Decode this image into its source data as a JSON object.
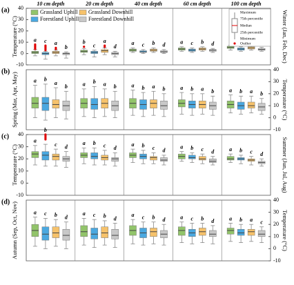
{
  "chart_data": [
    {
      "type": "box",
      "panel": "(a)",
      "categories": [
        "10 cm depth",
        "20 cm depth",
        "40 cm depth",
        "60 cm depth",
        "100 cm depth"
      ],
      "ylabel_left": "Temperature (°C)",
      "ylabel_right": "Winter (Jan, Feb, Dec)",
      "tick_side": "left",
      "ylim": [
        -10,
        40
      ],
      "yticks": [
        -10,
        0,
        10,
        20,
        30,
        40
      ],
      "box_key": {
        "maximum": "Maximum",
        "q3": "75th percentile",
        "median": "Median",
        "q1": "25th percentile",
        "minimum": "Minimum",
        "outlier": "Outlier"
      },
      "series": [
        {
          "name": "Grassland Uphill",
          "color": "#92c46a",
          "min": [
            -2,
            -1,
            1,
            2,
            3
          ],
          "q1": [
            0,
            1,
            2,
            3,
            4.5
          ],
          "median": [
            1,
            2,
            3,
            4,
            5.5
          ],
          "q3": [
            2,
            3,
            4,
            5,
            6.5
          ],
          "max": [
            3.5,
            4.5,
            5,
            6,
            7.5
          ],
          "letters": [
            "a",
            "b",
            "a",
            "a",
            "a"
          ],
          "outliers": [
            [
              4,
              5,
              6,
              7,
              8
            ],
            [
              6
            ],
            [],
            [],
            []
          ]
        },
        {
          "name": "Forestland Uphill",
          "color": "#4aa8e0",
          "min": [
            -5,
            -3,
            0,
            1,
            2
          ],
          "q1": [
            -1,
            0,
            1,
            2,
            3
          ],
          "median": [
            0,
            1,
            1.5,
            3,
            4
          ],
          "q3": [
            1,
            2,
            2.5,
            4,
            5
          ],
          "max": [
            2,
            3,
            3.5,
            5,
            6
          ],
          "letters": [
            "c",
            "c",
            "c",
            "c",
            "c"
          ],
          "outliers": [
            [
              3,
              4,
              5,
              6,
              7
            ],
            [],
            [],
            [],
            []
          ]
        },
        {
          "name": "Grassland Downhill",
          "color": "#f6c26b",
          "min": [
            -2,
            -1,
            1,
            2,
            3
          ],
          "q1": [
            0,
            1,
            2,
            3,
            4
          ],
          "median": [
            1,
            2.5,
            3,
            4,
            5
          ],
          "q3": [
            2,
            3.5,
            4,
            5,
            6
          ],
          "max": [
            3,
            5,
            5,
            6,
            7
          ],
          "letters": [
            "a",
            "a",
            "b",
            "b",
            "b"
          ],
          "outliers": [
            [
              4,
              5
            ],
            [
              6,
              7
            ],
            [],
            [],
            []
          ]
        },
        {
          "name": "Forestland Downhill",
          "color": "#c8c8c8",
          "min": [
            -4,
            -3,
            0,
            1,
            2
          ],
          "q1": [
            -1,
            -1,
            1,
            2,
            3
          ],
          "median": [
            0,
            0,
            1.5,
            3,
            3.5
          ],
          "q3": [
            0.5,
            1,
            2.5,
            3.5,
            4.5
          ],
          "max": [
            1.5,
            2,
            3.5,
            4.5,
            5.5
          ],
          "letters": [
            "b",
            "d",
            "d",
            "d",
            "b"
          ],
          "outliers": [
            [],
            [],
            [],
            [],
            []
          ]
        }
      ]
    },
    {
      "type": "box",
      "panel": "(b)",
      "ylabel_left": "Spring (Mar, Apr, May)",
      "ylabel_right": "Temperature (°C)",
      "tick_side": "right",
      "ylim": [
        -10,
        40
      ],
      "yticks": [
        -10,
        0,
        10,
        20,
        30,
        40
      ],
      "series": [
        {
          "color": "#92c46a",
          "min": [
            0,
            1,
            2,
            3,
            4
          ],
          "q1": [
            8,
            8,
            8,
            9,
            8
          ],
          "median": [
            12,
            12,
            12,
            12,
            11
          ],
          "q3": [
            17,
            16,
            16,
            15,
            14
          ],
          "max": [
            27,
            24,
            23,
            21,
            19
          ],
          "letters": [
            "a",
            "a",
            "a",
            "a",
            "a"
          ],
          "outliers": [
            [],
            [],
            [],
            [],
            []
          ]
        },
        {
          "color": "#4aa8e0",
          "min": [
            -2,
            0,
            1,
            2,
            3
          ],
          "q1": [
            6,
            7,
            7,
            8,
            7
          ],
          "median": [
            12,
            11,
            11,
            11,
            10
          ],
          "q3": [
            17,
            16,
            15,
            14,
            13
          ],
          "max": [
            28,
            26,
            21,
            20,
            18
          ],
          "letters": [
            "b",
            "b",
            "b",
            "b",
            "b"
          ],
          "outliers": [
            [],
            [],
            [],
            [],
            []
          ]
        },
        {
          "color": "#f6c26b",
          "min": [
            0,
            1,
            2,
            3,
            4
          ],
          "q1": [
            8,
            8,
            8,
            8,
            8
          ],
          "median": [
            11,
            12,
            12,
            11,
            10
          ],
          "q3": [
            15,
            16,
            15,
            14,
            13
          ],
          "max": [
            25,
            24,
            22,
            20,
            18
          ],
          "letters": [
            "a",
            "a",
            "a",
            "a",
            "a"
          ],
          "outliers": [
            [],
            [],
            [],
            [],
            []
          ]
        },
        {
          "color": "#c8c8c8",
          "min": [
            -1,
            0,
            1,
            2,
            3
          ],
          "q1": [
            6,
            6,
            7,
            7,
            6
          ],
          "median": [
            10,
            10,
            10,
            10,
            9
          ],
          "q3": [
            14,
            14,
            14,
            13,
            12
          ],
          "max": [
            22,
            22,
            20,
            18,
            16
          ],
          "letters": [
            "b",
            "b",
            "b",
            "b",
            "b"
          ],
          "outliers": [
            [],
            [],
            [],
            [],
            []
          ]
        }
      ]
    },
    {
      "type": "box",
      "panel": "(c)",
      "ylabel_left": "Temperature (°C)",
      "ylabel_right": "Summer (Jun, Jul, Aug)",
      "tick_side": "left",
      "ylim": [
        -10,
        40
      ],
      "yticks": [
        -10,
        0,
        10,
        20,
        30,
        40
      ],
      "series": [
        {
          "color": "#92c46a",
          "min": [
            15,
            16,
            17,
            18,
            17
          ],
          "q1": [
            21,
            21,
            21,
            20,
            19
          ],
          "median": [
            24,
            23,
            23,
            22,
            20
          ],
          "q3": [
            26,
            25,
            25,
            24,
            22
          ],
          "max": [
            31,
            29,
            28,
            26,
            24
          ],
          "letters": [
            "a",
            "a",
            "a",
            "a",
            "a"
          ],
          "outliers": [
            [],
            [],
            [],
            [],
            []
          ]
        },
        {
          "color": "#4aa8e0",
          "min": [
            14,
            15,
            16,
            17,
            16
          ],
          "q1": [
            19,
            20,
            20,
            20,
            19
          ],
          "median": [
            23,
            22,
            22,
            21,
            20
          ],
          "q3": [
            26,
            25,
            24,
            23,
            21
          ],
          "max": [
            32,
            29,
            27,
            25,
            23
          ],
          "letters": [
            "b",
            "b",
            "b",
            "b",
            "b"
          ],
          "outliers": [
            [
              36,
              37,
              38,
              39,
              40
            ],
            [],
            [],
            [],
            []
          ]
        },
        {
          "color": "#f6c26b",
          "min": [
            14,
            15,
            16,
            16,
            15
          ],
          "q1": [
            19,
            19,
            19,
            19,
            18
          ],
          "median": [
            22,
            21,
            21,
            20,
            19
          ],
          "q3": [
            24,
            23,
            22,
            22,
            20
          ],
          "max": [
            28,
            27,
            25,
            24,
            22
          ],
          "letters": [
            "c",
            "c",
            "c",
            "c",
            "c"
          ],
          "outliers": [
            [],
            [],
            [],
            [],
            []
          ]
        },
        {
          "color": "#c8c8c8",
          "min": [
            13,
            14,
            15,
            15,
            14
          ],
          "q1": [
            18,
            18,
            18,
            17,
            16
          ],
          "median": [
            20,
            20,
            19,
            18,
            17
          ],
          "q3": [
            22,
            21,
            21,
            20,
            18
          ],
          "max": [
            26,
            25,
            23,
            22,
            20
          ],
          "letters": [
            "d",
            "d",
            "d",
            "d",
            "d"
          ],
          "outliers": [
            [],
            [],
            [],
            [],
            []
          ]
        }
      ]
    },
    {
      "type": "box",
      "panel": "(d)",
      "ylabel_left": "Autumn (Sep, Oct, Nov)",
      "ylabel_right": "Temperature (°C)",
      "tick_side": "right",
      "ylim": [
        -10,
        40
      ],
      "yticks": [
        -10,
        0,
        10,
        20,
        30,
        40
      ],
      "series": [
        {
          "color": "#92c46a",
          "min": [
            2,
            3,
            4,
            5,
            6
          ],
          "q1": [
            10,
            10,
            11,
            11,
            12
          ],
          "median": [
            15,
            14,
            15,
            15,
            15
          ],
          "q3": [
            20,
            19,
            19,
            18,
            17
          ],
          "max": [
            26,
            25,
            24,
            22,
            21
          ],
          "letters": [
            "a",
            "a",
            "a",
            "a",
            "a"
          ],
          "outliers": [
            [],
            [],
            [],
            [],
            []
          ]
        },
        {
          "color": "#4aa8e0",
          "min": [
            0,
            1,
            3,
            4,
            5
          ],
          "q1": [
            7,
            8,
            9,
            10,
            11
          ],
          "median": [
            12,
            12,
            13,
            13,
            13
          ],
          "q3": [
            18,
            17,
            17,
            16,
            16
          ],
          "max": [
            25,
            24,
            22,
            21,
            20
          ],
          "letters": [
            "c",
            "c",
            "c",
            "c",
            "b"
          ],
          "outliers": [
            [],
            [],
            [],
            [],
            []
          ]
        },
        {
          "color": "#f6c26b",
          "min": [
            2,
            3,
            4,
            5,
            6
          ],
          "q1": [
            9,
            9,
            10,
            11,
            11
          ],
          "median": [
            13,
            13,
            14,
            14,
            14
          ],
          "q3": [
            18,
            18,
            17,
            17,
            16
          ],
          "max": [
            24,
            23,
            22,
            21,
            20
          ],
          "letters": [
            "b",
            "b",
            "b",
            "b",
            "a"
          ],
          "outliers": [
            [],
            [],
            [],
            [],
            []
          ]
        },
        {
          "color": "#c8c8c8",
          "min": [
            0,
            1,
            3,
            4,
            5
          ],
          "q1": [
            7,
            8,
            9,
            10,
            10
          ],
          "median": [
            11,
            11,
            12,
            12,
            12
          ],
          "q3": [
            16,
            16,
            15,
            15,
            15
          ],
          "max": [
            22,
            21,
            20,
            19,
            18
          ],
          "letters": [
            "d",
            "d",
            "d",
            "d",
            "c"
          ],
          "outliers": [
            [],
            [],
            [],
            [],
            []
          ]
        }
      ]
    }
  ]
}
